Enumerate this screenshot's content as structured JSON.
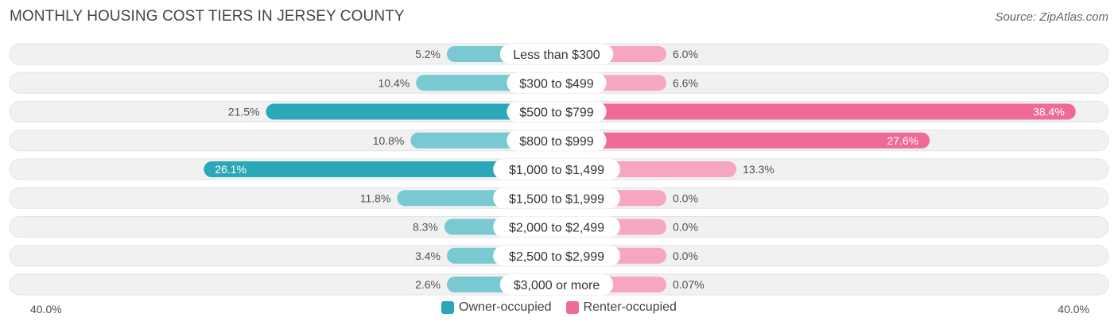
{
  "title": "MONTHLY HOUSING COST TIERS IN JERSEY COUNTY",
  "source": "Source: ZipAtlas.com",
  "colors": {
    "owner": "#2BA8B7",
    "owner_light": "#79C9D3",
    "renter": "#F06A97",
    "renter_light": "#F7A6C2",
    "track": "#F1F1F1"
  },
  "axis": {
    "left_label": "40.0%",
    "right_label": "40.0%"
  },
  "legend": [
    {
      "label": "Owner-occupied",
      "color": "#2BA8B7"
    },
    {
      "label": "Renter-occupied",
      "color": "#F06A97"
    }
  ],
  "chart_data": {
    "type": "bar",
    "orientation": "diverging-horizontal",
    "xlim": [
      -40,
      40
    ],
    "categories": [
      "Less than $300",
      "$300 to $499",
      "$500 to $799",
      "$800 to $999",
      "$1,000 to $1,499",
      "$1,500 to $1,999",
      "$2,000 to $2,499",
      "$2,500 to $2,999",
      "$3,000 or more"
    ],
    "series": [
      {
        "name": "Owner-occupied",
        "values": [
          5.2,
          10.4,
          21.5,
          10.8,
          26.1,
          11.8,
          8.3,
          3.4,
          2.6
        ],
        "labels": [
          "5.2%",
          "10.4%",
          "21.5%",
          "10.8%",
          "26.1%",
          "11.8%",
          "8.3%",
          "3.4%",
          "2.6%"
        ]
      },
      {
        "name": "Renter-occupied",
        "values": [
          6.0,
          6.6,
          38.4,
          27.6,
          13.3,
          0.0,
          0.0,
          0.0,
          0.07
        ],
        "labels": [
          "6.0%",
          "6.6%",
          "38.4%",
          "27.6%",
          "13.3%",
          "0.0%",
          "0.0%",
          "0.0%",
          "0.07%"
        ]
      }
    ]
  }
}
